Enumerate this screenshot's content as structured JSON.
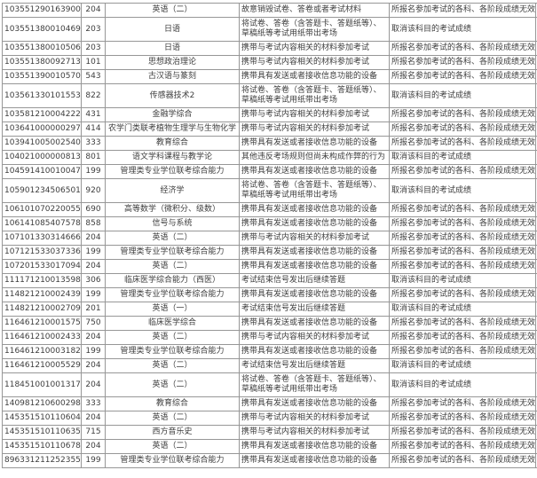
{
  "colors": {
    "background": "#ffffff",
    "grid_border": "#979797",
    "text": "#3d3d3d"
  },
  "penalties": {
    "all_invalid": "所报名参加考试的各科、各阶段成绩无效",
    "subject_cancelled": "取消该科目的考试成绩"
  },
  "violations": {
    "destroy": "故意销毁试卷、答卷或者考试材料",
    "take_out": "将试卷、答卷（含答题卡、答题纸等）、草稿纸等考试用纸带出考场",
    "materials": "携带与考试内容相关的材料参加考试",
    "device": "携带具有发送或者接收信息功能的设备",
    "other_rule": "其他违反考场规则但尚未构成作弊的行为",
    "after_signal": "考试结束信号发出后继续答题"
  },
  "rows": [
    {
      "id": "103551290163900",
      "code": "204",
      "subject": "英语（二）",
      "violation": "故意销毁试卷、答卷或者考试材料",
      "penalty": "所报名参加考试的各科、各阶段成绩无效"
    },
    {
      "id": "103551380010469",
      "code": "203",
      "subject": "日语",
      "violation": "将试卷、答卷（含答题卡、答题纸等）、草稿纸等考试用纸带出考场",
      "penalty": "取消该科目的考试成绩"
    },
    {
      "id": "103551380010506",
      "code": "203",
      "subject": "日语",
      "violation": "携带与考试内容相关的材料参加考试",
      "penalty": "所报名参加考试的各科、各阶段成绩无效"
    },
    {
      "id": "103551380092713",
      "code": "101",
      "subject": "思想政治理论",
      "violation": "携带与考试内容相关的材料参加考试",
      "penalty": "所报名参加考试的各科、各阶段成绩无效"
    },
    {
      "id": "103551390010570",
      "code": "543",
      "subject": "古汉语与篆刻",
      "violation": "携带具有发送或者接收信息功能的设备",
      "penalty": "所报名参加考试的各科、各阶段成绩无效"
    },
    {
      "id": "103561330101553",
      "code": "822",
      "subject": "传感器技术2",
      "violation": "将试卷、答卷（含答题卡、答题纸等）、草稿纸等考试用纸带出考场",
      "penalty": "取消该科目的考试成绩"
    },
    {
      "id": "103581210004222",
      "code": "431",
      "subject": "金融学综合",
      "violation": "携带与考试内容相关的材料参加考试",
      "penalty": "所报名参加考试的各科、各阶段成绩无效"
    },
    {
      "id": "103641000000297",
      "code": "414",
      "subject": "农学门类联考植物生理学与生物化学",
      "violation": "携带与考试内容相关的材料参加考试",
      "penalty": "所报名参加考试的各科、各阶段成绩无效"
    },
    {
      "id": "103941005002540",
      "code": "333",
      "subject": "教育综合",
      "violation": "携带具有发送或者接收信息功能的设备",
      "penalty": "所报名参加考试的各科、各阶段成绩无效"
    },
    {
      "id": "104021000000813",
      "code": "801",
      "subject": "语文学科课程与教学论",
      "violation": "其他违反考场规则但尚未构成作弊的行为",
      "penalty": "取消该科目的考试成绩"
    },
    {
      "id": "104591410010047",
      "code": "199",
      "subject": "管理类专业学位联考综合能力",
      "violation": "携带具有发送或者接收信息功能的设备",
      "penalty": "所报名参加考试的各科、各阶段成绩无效"
    },
    {
      "id": "105901234506501",
      "code": "920",
      "subject": "经济学",
      "violation": "将试卷、答卷（含答题卡、答题纸等）、草稿纸等考试用纸带出考场",
      "penalty": "取消该科目的考试成绩"
    },
    {
      "id": "106101070220055",
      "code": "690",
      "subject": "高等数学（微积分、级数）",
      "violation": "携带具有发送或者接收信息功能的设备",
      "penalty": "所报名参加考试的各科、各阶段成绩无效"
    },
    {
      "id": "106141085407578",
      "code": "858",
      "subject": "信号与系统",
      "violation": "携带具有发送或者接收信息功能的设备",
      "penalty": "所报名参加考试的各科、各阶段成绩无效"
    },
    {
      "id": "107101330314666",
      "code": "204",
      "subject": "英语（二）",
      "violation": "携带与考试内容相关的材料参加考试",
      "penalty": "所报名参加考试的各科、各阶段成绩无效"
    },
    {
      "id": "107121533037336",
      "code": "199",
      "subject": "管理类专业学位联考综合能力",
      "violation": "携带具有发送或者接收信息功能的设备",
      "penalty": "所报名参加考试的各科、各阶段成绩无效"
    },
    {
      "id": "107201533017094",
      "code": "204",
      "subject": "英语（二）",
      "violation": "携带具有发送或者接收信息功能的设备",
      "penalty": "所报名参加考试的各科、各阶段成绩无效"
    },
    {
      "id": "111171210013598",
      "code": "306",
      "subject": "临床医学综合能力（西医）",
      "violation": "考试结束信号发出后继续答题",
      "penalty": "取消该科目的考试成绩"
    },
    {
      "id": "114821210002439",
      "code": "199",
      "subject": "管理类专业学位联考综合能力",
      "violation": "携带具有发送或者接收信息功能的设备",
      "penalty": "所报名参加考试的各科、各阶段成绩无效"
    },
    {
      "id": "114821210002709",
      "code": "201",
      "subject": "英语（一）",
      "violation": "考试结束信号发出后继续答题",
      "penalty": "取消该科目的考试成绩"
    },
    {
      "id": "116461210001575",
      "code": "750",
      "subject": "临床医学综合",
      "violation": "携带具有发送或者接收信息功能的设备",
      "penalty": "所报名参加考试的各科、各阶段成绩无效"
    },
    {
      "id": "116461210002433",
      "code": "204",
      "subject": "英语（二）",
      "violation": "携带与考试内容相关的材料参加考试",
      "penalty": "所报名参加考试的各科、各阶段成绩无效"
    },
    {
      "id": "116461210003182",
      "code": "199",
      "subject": "管理类专业学位联考综合能力",
      "violation": "携带具有发送或者接收信息功能的设备",
      "penalty": "所报名参加考试的各科、各阶段成绩无效"
    },
    {
      "id": "116461210005529",
      "code": "204",
      "subject": "英语（二）",
      "violation": "考试结束信号发出后继续答题",
      "penalty": "取消该科目的考试成绩"
    },
    {
      "id": "118451001001317",
      "code": "204",
      "subject": "英语（二）",
      "violation": "将试卷、答卷（含答题卡、答题纸等）、草稿纸等考试用纸带出考场",
      "penalty": "取消该科目的考试成绩"
    },
    {
      "id": "140981210600298",
      "code": "333",
      "subject": "教育综合",
      "violation": "携带具有发送或者接收信息功能的设备",
      "penalty": "所报名参加考试的各科、各阶段成绩无效"
    },
    {
      "id": "145351510110604",
      "code": "204",
      "subject": "英语（二）",
      "violation": "携带与考试内容相关的材料参加考试",
      "penalty": "所报名参加考试的各科、各阶段成绩无效"
    },
    {
      "id": "145351510110635",
      "code": "715",
      "subject": "西方音乐史",
      "violation": "携带与考试内容相关的材料参加考试",
      "penalty": "所报名参加考试的各科、各阶段成绩无效"
    },
    {
      "id": "145351510110678",
      "code": "204",
      "subject": "英语（二）",
      "violation": "携带具有发送或者接收信息功能的设备",
      "penalty": "所报名参加考试的各科、各阶段成绩无效"
    },
    {
      "id": "896331211252355",
      "code": "199",
      "subject": "管理类专业学位联考综合能力",
      "violation": "携带具有发送或者接收信息功能的设备",
      "penalty": "所报名参加考试的各科、各阶段成绩无效"
    }
  ]
}
